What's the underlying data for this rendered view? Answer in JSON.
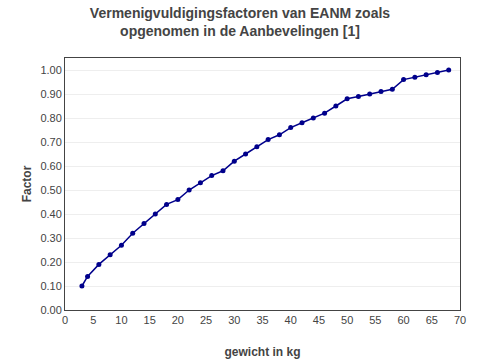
{
  "chart_data": {
    "type": "line",
    "title": "Vermenigvuldigingsfactoren van EANM zoals\nopgenomen in de Aanbevelingen [1]",
    "xlabel": "gewicht in kg",
    "ylabel": "Factor",
    "x": [
      3,
      4,
      6,
      8,
      10,
      12,
      14,
      16,
      18,
      20,
      22,
      24,
      26,
      28,
      30,
      32,
      34,
      36,
      38,
      40,
      42,
      44,
      46,
      48,
      50,
      52,
      54,
      56,
      58,
      60,
      62,
      64,
      66,
      68
    ],
    "values": [
      0.1,
      0.14,
      0.19,
      0.23,
      0.27,
      0.32,
      0.36,
      0.4,
      0.44,
      0.46,
      0.5,
      0.53,
      0.56,
      0.58,
      0.62,
      0.65,
      0.68,
      0.71,
      0.73,
      0.76,
      0.78,
      0.8,
      0.82,
      0.85,
      0.88,
      0.89,
      0.9,
      0.91,
      0.92,
      0.96,
      0.97,
      0.98,
      0.99,
      1.0
    ],
    "color": "#00008B",
    "marker": "circle",
    "line_style": "solid",
    "xlim": [
      0,
      70
    ],
    "ylim": [
      0.0,
      1.05
    ],
    "xticks": [
      0,
      5,
      10,
      15,
      20,
      25,
      30,
      35,
      40,
      45,
      50,
      55,
      60,
      65,
      70
    ],
    "yticks": [
      {
        "value": 0.0,
        "label": "0.00"
      },
      {
        "value": 0.1,
        "label": "0.10"
      },
      {
        "value": 0.2,
        "label": "0.20"
      },
      {
        "value": 0.3,
        "label": "0.30"
      },
      {
        "value": 0.4,
        "label": "0.40"
      },
      {
        "value": 0.5,
        "label": "0.50"
      },
      {
        "value": 0.6,
        "label": "0.60"
      },
      {
        "value": 0.7,
        "label": "0.70"
      },
      {
        "value": 0.8,
        "label": "0.80"
      },
      {
        "value": 0.9,
        "label": "0.90"
      },
      {
        "value": 1.0,
        "label": "1.00"
      }
    ],
    "grid": true
  }
}
